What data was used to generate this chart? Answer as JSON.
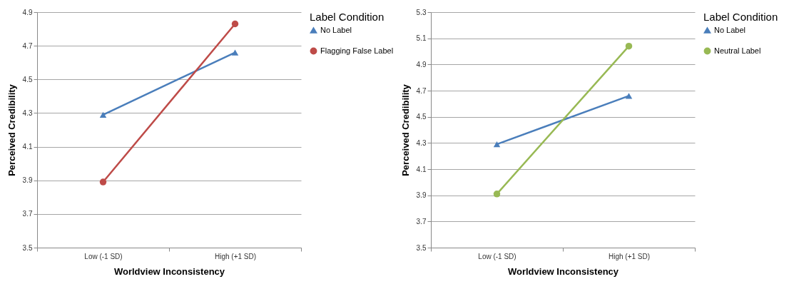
{
  "chart_data": [
    {
      "type": "line",
      "xlabel": "Worldview Inconsistency",
      "ylabel": "Perceived Credibility",
      "legend_title": "Label Condition",
      "legend": "right",
      "grid": "y",
      "categories": [
        "Low (-1 SD)",
        "High (+1 SD)"
      ],
      "ylim": [
        3.5,
        4.9
      ],
      "yticks": [
        3.5,
        3.7,
        3.9,
        4.1,
        4.3,
        4.5,
        4.7,
        4.9
      ],
      "series": [
        {
          "name": "No Label",
          "color": "#4a7ebb",
          "marker": "triangle",
          "values": [
            4.29,
            4.66
          ]
        },
        {
          "name": "Flagging False Label",
          "color": "#be4b48",
          "marker": "circle",
          "values": [
            3.89,
            4.83
          ]
        }
      ]
    },
    {
      "type": "line",
      "xlabel": "Worldview Inconsistency",
      "ylabel": "Perceived Credibility",
      "legend_title": "Label Condition",
      "legend": "right",
      "grid": "y",
      "categories": [
        "Low (-1 SD)",
        "High (+1 SD)"
      ],
      "ylim": [
        3.5,
        5.3
      ],
      "yticks": [
        3.5,
        3.7,
        3.9,
        4.1,
        4.3,
        4.5,
        4.7,
        4.9,
        5.1,
        5.3
      ],
      "series": [
        {
          "name": "No Label",
          "color": "#4a7ebb",
          "marker": "triangle",
          "values": [
            4.29,
            4.66
          ]
        },
        {
          "name": "Neutral Label",
          "color": "#98b954",
          "marker": "circle",
          "values": [
            3.91,
            5.04
          ]
        }
      ]
    }
  ]
}
